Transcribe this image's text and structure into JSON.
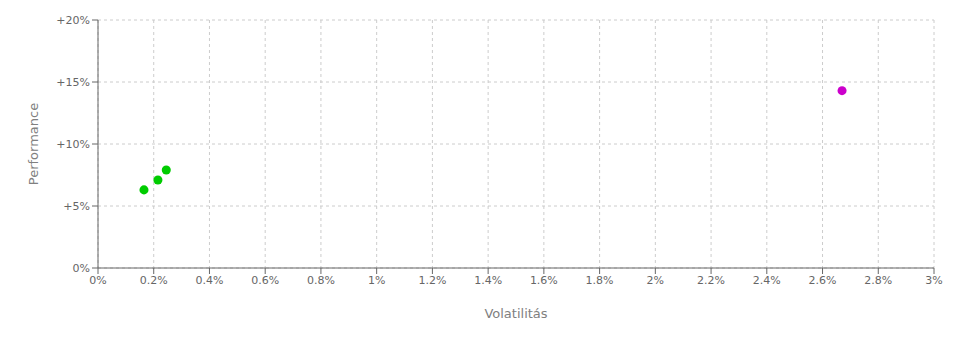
{
  "chart_data": {
    "type": "scatter",
    "xlabel": "Volatilitás",
    "ylabel": "Performance",
    "x": [
      0.00165,
      0.00215,
      0.00245,
      0.0267
    ],
    "values": [
      0.063,
      0.071,
      0.079,
      0.143
    ],
    "colors": [
      "#00cc00",
      "#00cc00",
      "#00cc00",
      "#cc00cc"
    ],
    "xlim": [
      0,
      0.03
    ],
    "ylim": [
      0,
      0.2
    ],
    "xticks": [
      {
        "value": 0,
        "label": "0%"
      },
      {
        "value": 0.002,
        "label": "0.2%"
      },
      {
        "value": 0.004,
        "label": "0.4%"
      },
      {
        "value": 0.006,
        "label": "0.6%"
      },
      {
        "value": 0.008,
        "label": "0.8%"
      },
      {
        "value": 0.01,
        "label": "1%"
      },
      {
        "value": 0.012,
        "label": "1.2%"
      },
      {
        "value": 0.014,
        "label": "1.4%"
      },
      {
        "value": 0.016,
        "label": "1.6%"
      },
      {
        "value": 0.018,
        "label": "1.8%"
      },
      {
        "value": 0.02,
        "label": "2%"
      },
      {
        "value": 0.022,
        "label": "2.2%"
      },
      {
        "value": 0.024,
        "label": "2.4%"
      },
      {
        "value": 0.026,
        "label": "2.6%"
      },
      {
        "value": 0.028,
        "label": "2.8%"
      },
      {
        "value": 0.03,
        "label": "3%"
      }
    ],
    "yticks": [
      {
        "value": 0,
        "label": "0%"
      },
      {
        "value": 0.05,
        "label": "+5%"
      },
      {
        "value": 0.1,
        "label": "+10%"
      },
      {
        "value": 0.15,
        "label": "+15%"
      },
      {
        "value": 0.2,
        "label": "+20%"
      }
    ],
    "grid": true
  }
}
